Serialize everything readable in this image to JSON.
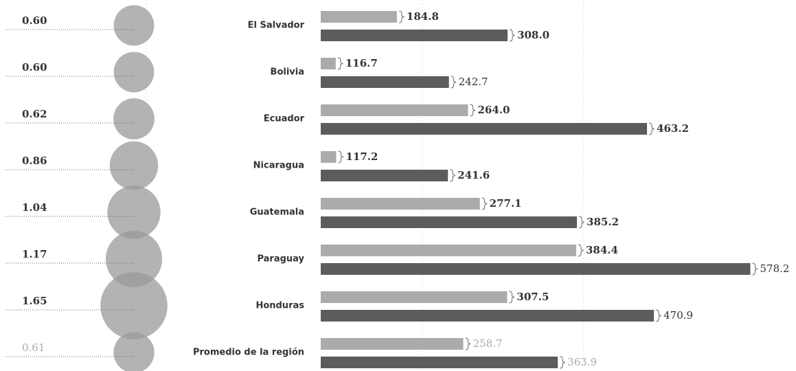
{
  "chart_data": {
    "type": "bar",
    "categories": [
      "El Salvador",
      "Bolivia",
      "Ecuador",
      "Nicaragua",
      "Guatemala",
      "Paraguay",
      "Honduras",
      "Promedio de la región"
    ],
    "bubble_values": [
      0.6,
      0.6,
      0.62,
      0.86,
      1.04,
      1.17,
      1.65,
      0.61
    ],
    "bubble_value_labels": [
      "0.60",
      "0.60",
      "0.62",
      "0.86",
      "1.04",
      "1.17",
      "1.65",
      "0.61"
    ],
    "bubble_color": "#9a9a9a",
    "series": [
      {
        "color": "#ababab",
        "values": [
          184.8,
          116.7,
          264.0,
          117.2,
          277.1,
          384.4,
          307.5,
          258.7
        ],
        "value_labels": [
          "184.8",
          "116.7",
          "264.0",
          "117.2",
          "277.1",
          "384.4",
          "307.5",
          "258.7"
        ]
      },
      {
        "color": "#5c5c5c",
        "values": [
          308.0,
          242.7,
          463.2,
          241.6,
          385.2,
          578.2,
          470.9,
          363.9
        ],
        "value_labels": [
          "308.0",
          "242.7",
          "463.2",
          "241.6",
          "385.2",
          "578.2",
          "470.9",
          "363.9"
        ]
      }
    ],
    "xlim": [
      100,
      600
    ]
  }
}
